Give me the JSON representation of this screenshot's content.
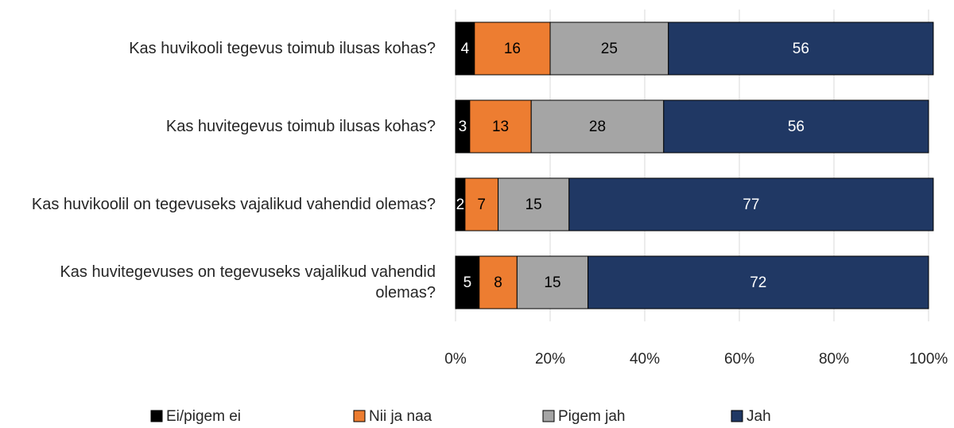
{
  "chart_data": {
    "type": "stacked_bar_horizontal",
    "categories": [
      "Kas huvikooli tegevus toimub ilusas kohas?",
      "Kas huvitegevus toimub ilusas kohas?",
      "Kas huvikoolil on tegevuseks vajalikud vahendid olemas?",
      "Kas huvitegevuses on tegevuseks vajalikud vahendid olemas?"
    ],
    "series": [
      {
        "name": "Ei/pigem ei",
        "color": "#000000",
        "label_color": "#ffffff",
        "values": [
          4,
          3,
          2,
          5
        ]
      },
      {
        "name": "Nii ja naa",
        "color": "#ed7d31",
        "label_color": "#000000",
        "values": [
          16,
          13,
          7,
          8
        ]
      },
      {
        "name": "Pigem jah",
        "color": "#a5a5a5",
        "label_color": "#000000",
        "values": [
          25,
          28,
          15,
          15
        ]
      },
      {
        "name": "Jah",
        "color": "#203864",
        "label_color": "#ffffff",
        "values": [
          56,
          56,
          77,
          72
        ]
      }
    ],
    "xlim": [
      0,
      100
    ],
    "xticks": [
      {
        "value": 0,
        "label": "0%"
      },
      {
        "value": 20,
        "label": "20%"
      },
      {
        "value": 40,
        "label": "40%"
      },
      {
        "value": 60,
        "label": "60%"
      },
      {
        "value": 80,
        "label": "80%"
      },
      {
        "value": 100,
        "label": "100%"
      }
    ],
    "grid": true,
    "legend": "bottom"
  }
}
